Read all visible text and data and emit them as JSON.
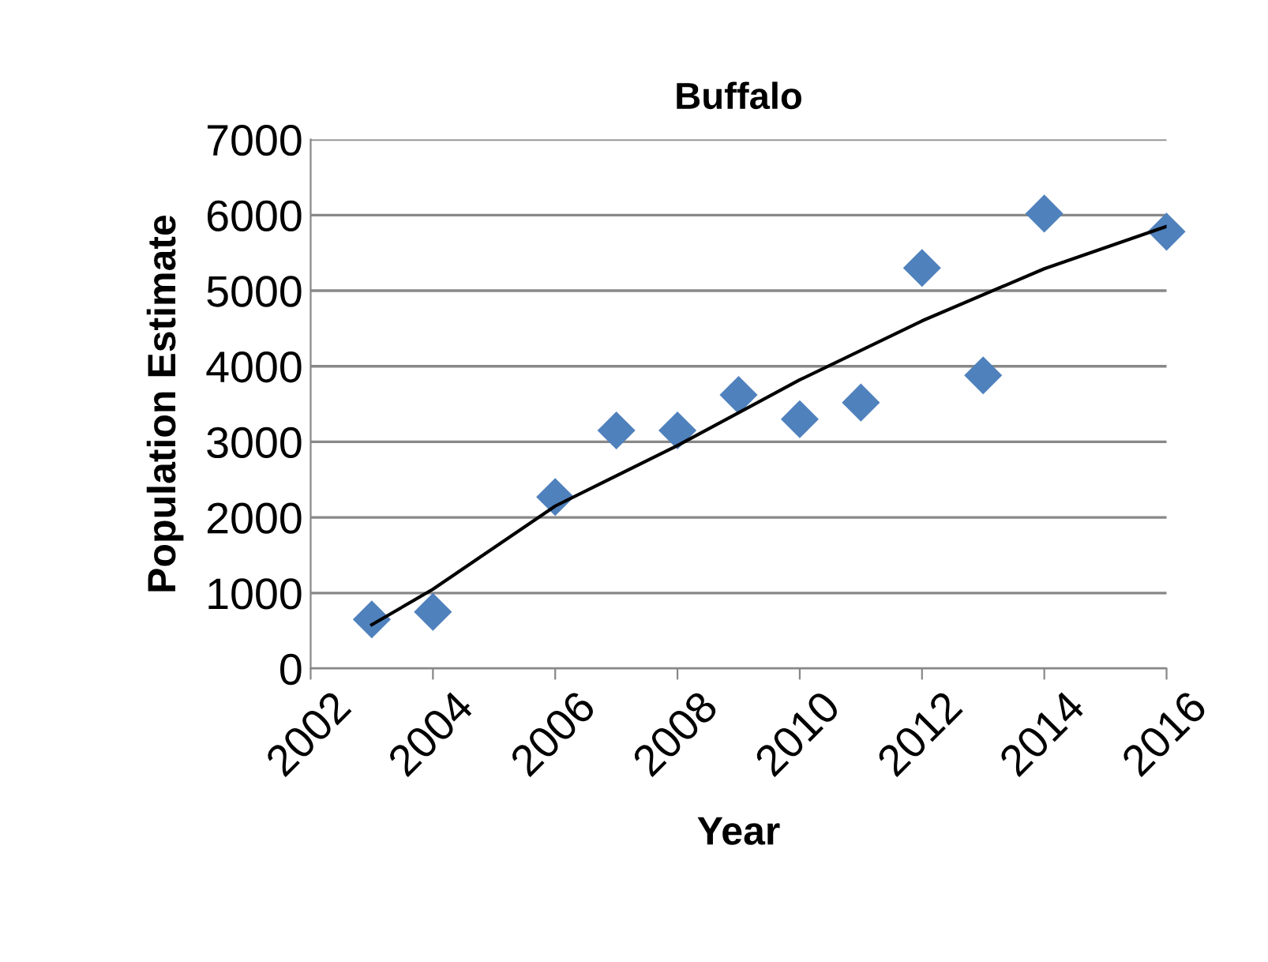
{
  "chart_data": {
    "type": "scatter",
    "title": "Buffalo",
    "xlabel": "Year",
    "ylabel": "Population Estimate",
    "xlim": [
      2002,
      2016
    ],
    "xticks": [
      2002,
      2004,
      2006,
      2008,
      2010,
      2012,
      2014,
      2016
    ],
    "ylim": [
      0,
      7000
    ],
    "yticks": [
      0,
      1000,
      2000,
      3000,
      4000,
      5000,
      6000,
      7000
    ],
    "grid": "y",
    "legend": false,
    "marker": "diamond",
    "series": [
      {
        "color": "#4f81bd",
        "x": [
          2003,
          2004,
          2006,
          2007,
          2008,
          2009,
          2010,
          2011,
          2012,
          2013,
          2014,
          2016
        ],
        "values": [
          650,
          750,
          2270,
          3150,
          3150,
          3620,
          3300,
          3520,
          5300,
          3880,
          6020,
          5780
        ]
      },
      {
        "type": "line",
        "color": "#000000",
        "marker": "none",
        "x": [
          2003,
          2004,
          2006,
          2008,
          2010,
          2012,
          2014,
          2016
        ],
        "values": [
          580,
          1050,
          2150,
          2950,
          3820,
          4600,
          5290,
          5850
        ]
      }
    ]
  }
}
